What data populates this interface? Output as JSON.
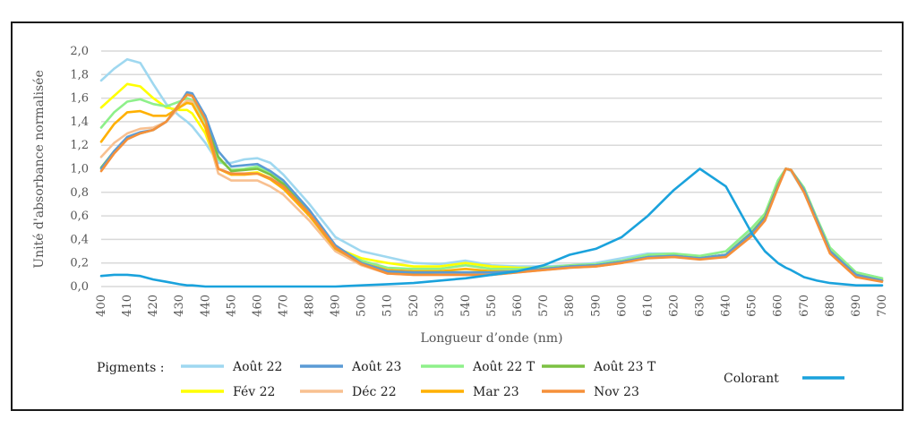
{
  "chart_data": {
    "type": "line",
    "title": "",
    "xlabel": "Longueur d’onde (nm)",
    "ylabel": "Unité d'absorbance normalisée",
    "xlim": [
      400,
      700
    ],
    "ylim": [
      0,
      2.0
    ],
    "grid": true,
    "x_ticks": [
      "400",
      "410",
      "420",
      "430",
      "440",
      "450",
      "460",
      "470",
      "480",
      "490",
      "500",
      "510",
      "520",
      "530",
      "540",
      "550",
      "560",
      "570",
      "580",
      "590",
      "600",
      "610",
      "620",
      "630",
      "640",
      "650",
      "660",
      "670",
      "680",
      "690",
      "700"
    ],
    "y_ticks": [
      "0,0",
      "0,2",
      "0,4",
      "0,6",
      "0,8",
      "1,0",
      "1,2",
      "1,4",
      "1,6",
      "1,8",
      "2,0"
    ],
    "x": [
      400,
      405,
      410,
      415,
      420,
      425,
      430,
      433,
      435,
      440,
      445,
      450,
      455,
      460,
      465,
      470,
      480,
      490,
      500,
      510,
      520,
      530,
      540,
      550,
      560,
      570,
      580,
      590,
      600,
      610,
      620,
      630,
      640,
      650,
      655,
      660,
      663,
      665,
      670,
      675,
      680,
      690,
      700
    ],
    "legend_group_label": "Pigments :",
    "series": [
      {
        "name": "Août 22",
        "color": "#9fd8f0",
        "group": "pigments",
        "values": [
          1.75,
          1.85,
          1.93,
          1.9,
          1.72,
          1.55,
          1.45,
          1.4,
          1.36,
          1.22,
          1.05,
          1.05,
          1.08,
          1.09,
          1.05,
          0.95,
          0.7,
          0.42,
          0.3,
          0.25,
          0.2,
          0.19,
          0.22,
          0.18,
          0.17,
          0.17,
          0.18,
          0.2,
          0.24,
          0.28,
          0.28,
          0.25,
          0.3,
          0.48,
          0.6,
          0.88,
          1.0,
          0.98,
          0.8,
          0.55,
          0.32,
          0.12,
          0.07
        ]
      },
      {
        "name": "Août 23",
        "color": "#5b9bd5",
        "group": "pigments",
        "values": [
          1.0,
          1.15,
          1.27,
          1.31,
          1.33,
          1.4,
          1.55,
          1.65,
          1.64,
          1.45,
          1.15,
          1.02,
          1.03,
          1.04,
          0.98,
          0.9,
          0.65,
          0.35,
          0.2,
          0.13,
          0.12,
          0.12,
          0.12,
          0.12,
          0.13,
          0.15,
          0.17,
          0.18,
          0.21,
          0.25,
          0.26,
          0.24,
          0.27,
          0.45,
          0.58,
          0.85,
          1.0,
          0.99,
          0.82,
          0.56,
          0.3,
          0.1,
          0.05
        ]
      },
      {
        "name": "Août 22 T",
        "color": "#8ef08a",
        "group": "pigments",
        "values": [
          1.35,
          1.48,
          1.57,
          1.59,
          1.55,
          1.53,
          1.57,
          1.6,
          1.58,
          1.4,
          1.08,
          0.99,
          1.0,
          1.02,
          0.97,
          0.88,
          0.62,
          0.33,
          0.22,
          0.16,
          0.15,
          0.15,
          0.18,
          0.15,
          0.15,
          0.16,
          0.18,
          0.19,
          0.22,
          0.27,
          0.28,
          0.26,
          0.3,
          0.5,
          0.62,
          0.9,
          1.0,
          0.99,
          0.84,
          0.58,
          0.33,
          0.12,
          0.07
        ]
      },
      {
        "name": "Août 23 T",
        "color": "#7cc142",
        "group": "pigments",
        "values": [
          1.01,
          1.15,
          1.26,
          1.3,
          1.33,
          1.4,
          1.55,
          1.63,
          1.62,
          1.42,
          1.1,
          0.98,
          0.99,
          1.0,
          0.95,
          0.87,
          0.62,
          0.33,
          0.19,
          0.12,
          0.11,
          0.12,
          0.12,
          0.12,
          0.13,
          0.15,
          0.17,
          0.18,
          0.21,
          0.25,
          0.26,
          0.24,
          0.27,
          0.46,
          0.59,
          0.86,
          1.0,
          0.99,
          0.82,
          0.56,
          0.3,
          0.1,
          0.05
        ]
      },
      {
        "name": "Fév 22",
        "color": "#ffff00",
        "group": "pigments",
        "values": [
          1.52,
          1.62,
          1.72,
          1.7,
          1.6,
          1.52,
          1.5,
          1.5,
          1.47,
          1.3,
          1.0,
          0.95,
          0.96,
          0.97,
          0.92,
          0.84,
          0.6,
          0.33,
          0.24,
          0.2,
          0.17,
          0.17,
          0.2,
          0.17,
          0.16,
          0.16,
          0.17,
          0.18,
          0.21,
          0.25,
          0.26,
          0.24,
          0.27,
          0.46,
          0.59,
          0.86,
          1.0,
          0.99,
          0.82,
          0.56,
          0.3,
          0.1,
          0.06
        ]
      },
      {
        "name": "Déc 22",
        "color": "#f8c090",
        "group": "pigments",
        "values": [
          1.1,
          1.22,
          1.3,
          1.34,
          1.35,
          1.4,
          1.52,
          1.58,
          1.57,
          1.35,
          0.96,
          0.9,
          0.9,
          0.9,
          0.85,
          0.78,
          0.56,
          0.3,
          0.18,
          0.11,
          0.1,
          0.1,
          0.1,
          0.1,
          0.12,
          0.14,
          0.16,
          0.17,
          0.2,
          0.25,
          0.26,
          0.24,
          0.27,
          0.46,
          0.59,
          0.86,
          1.0,
          0.99,
          0.82,
          0.56,
          0.3,
          0.1,
          0.05
        ]
      },
      {
        "name": "Mar 23",
        "color": "#ffb000",
        "group": "pigments",
        "values": [
          1.23,
          1.38,
          1.48,
          1.49,
          1.45,
          1.45,
          1.52,
          1.56,
          1.55,
          1.35,
          1.0,
          0.95,
          0.95,
          0.96,
          0.91,
          0.83,
          0.6,
          0.32,
          0.2,
          0.14,
          0.13,
          0.13,
          0.15,
          0.13,
          0.13,
          0.15,
          0.17,
          0.18,
          0.21,
          0.25,
          0.26,
          0.24,
          0.27,
          0.46,
          0.59,
          0.86,
          1.0,
          0.99,
          0.82,
          0.56,
          0.3,
          0.1,
          0.05
        ]
      },
      {
        "name": "Nov 23",
        "color": "#f5903a",
        "group": "pigments",
        "values": [
          0.98,
          1.13,
          1.25,
          1.3,
          1.33,
          1.4,
          1.55,
          1.63,
          1.62,
          1.42,
          1.0,
          0.96,
          0.96,
          0.96,
          0.92,
          0.85,
          0.62,
          0.33,
          0.19,
          0.11,
          0.1,
          0.1,
          0.1,
          0.1,
          0.12,
          0.14,
          0.16,
          0.17,
          0.2,
          0.24,
          0.25,
          0.23,
          0.25,
          0.43,
          0.56,
          0.84,
          1.0,
          0.99,
          0.8,
          0.54,
          0.28,
          0.08,
          0.04
        ]
      },
      {
        "name": "Colorant",
        "color": "#1aa2dc",
        "group": "colorant",
        "values": [
          0.09,
          0.1,
          0.1,
          0.09,
          0.06,
          0.04,
          0.02,
          0.01,
          0.01,
          0.0,
          0.0,
          0.0,
          0.0,
          0.0,
          0.0,
          0.0,
          0.0,
          0.0,
          0.01,
          0.02,
          0.03,
          0.05,
          0.07,
          0.1,
          0.13,
          0.18,
          0.27,
          0.32,
          0.42,
          0.6,
          0.82,
          1.0,
          0.85,
          0.45,
          0.3,
          0.2,
          0.16,
          0.14,
          0.08,
          0.05,
          0.03,
          0.01,
          0.01
        ]
      }
    ]
  }
}
